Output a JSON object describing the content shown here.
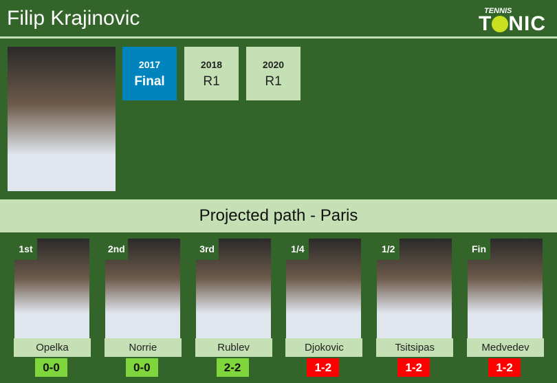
{
  "header": {
    "title": "Filip Krajinovic",
    "logo_small": "TENNIS",
    "logo_big_1": "T",
    "logo_big_2": "NIC"
  },
  "history": [
    {
      "year": "2017",
      "result": "Final",
      "highlight": true
    },
    {
      "year": "2018",
      "result": "R1",
      "highlight": false
    },
    {
      "year": "2020",
      "result": "R1",
      "highlight": false
    }
  ],
  "band": {
    "title": "Projected path - Paris"
  },
  "colors": {
    "background": "#33652a",
    "light": "#c5e0b4",
    "highlight": "#0084be",
    "win": "#7ed63c",
    "loss": "#ff0000"
  },
  "path": [
    {
      "round": "1st",
      "name": "Opelka",
      "score": "0-0",
      "status": "win"
    },
    {
      "round": "2nd",
      "name": "Norrie",
      "score": "0-0",
      "status": "win"
    },
    {
      "round": "3rd",
      "name": "Rublev",
      "score": "2-2",
      "status": "win"
    },
    {
      "round": "1/4",
      "name": "Djokovic",
      "score": "1-2",
      "status": "loss"
    },
    {
      "round": "1/2",
      "name": "Tsitsipas",
      "score": "1-2",
      "status": "loss"
    },
    {
      "round": "Fin",
      "name": "Medvedev",
      "score": "1-2",
      "status": "loss"
    }
  ]
}
